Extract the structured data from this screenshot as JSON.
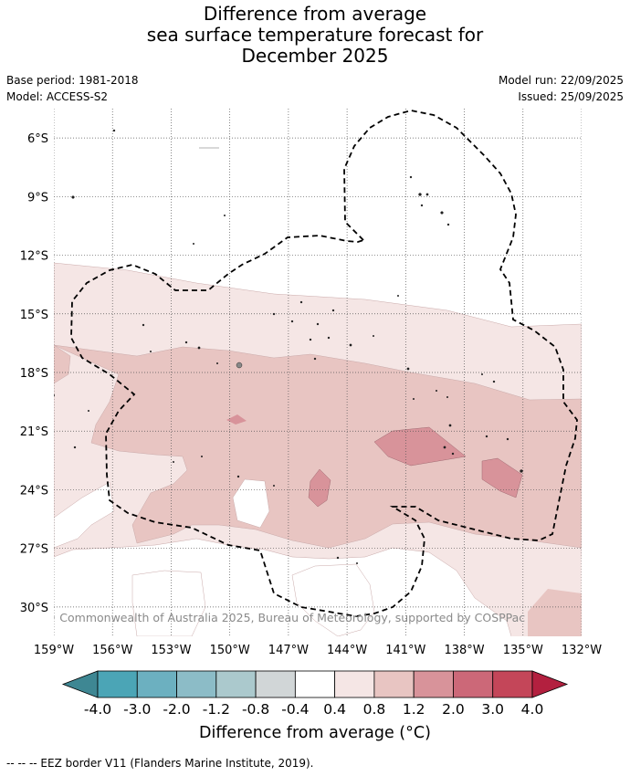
{
  "title": {
    "line1": "Difference from average",
    "line2": "sea surface temperature forecast for",
    "line3": "December 2025"
  },
  "meta": {
    "base_period": "Base period: 1981-2018",
    "model": "Model: ACCESS-S2",
    "model_run": "Model run: 22/09/2025",
    "issued": "Issued: 25/09/2025"
  },
  "map": {
    "copyright": "© Commonwealth of Australia 2025, Bureau of Meteorology, supported by COSPPac",
    "lat_labels": [
      "6°S",
      "9°S",
      "12°S",
      "15°S",
      "18°S",
      "21°S",
      "24°S",
      "27°S",
      "30°S"
    ],
    "lon_labels": [
      "159°W",
      "156°W",
      "153°W",
      "150°W",
      "147°W",
      "144°W",
      "141°W",
      "138°W",
      "135°W",
      "132°W"
    ],
    "extent": {
      "west": -159,
      "east": -132,
      "north": -4.5,
      "south": -31.5
    }
  },
  "colorbar": {
    "ticks": [
      "-4.0",
      "-3.0",
      "-2.0",
      "-1.2",
      "-0.8",
      "-0.4",
      "0.4",
      "0.8",
      "1.2",
      "2.0",
      "3.0",
      "4.0"
    ],
    "colors": [
      "#3e8793",
      "#4ba5b6",
      "#6cb0c0",
      "#8cbcc7",
      "#abc9cd",
      "#d1d6d7",
      "#ffffff",
      "#f5e6e5",
      "#e8c5c2",
      "#d8939a",
      "#cc6878",
      "#c44659",
      "#b3203f"
    ],
    "label_text": "Difference from average (",
    "label_unit": "°C",
    "label_close": ")"
  },
  "footnote": "--  --  -- EEZ border V11 (Flanders Marine Institute, 2019)."
}
